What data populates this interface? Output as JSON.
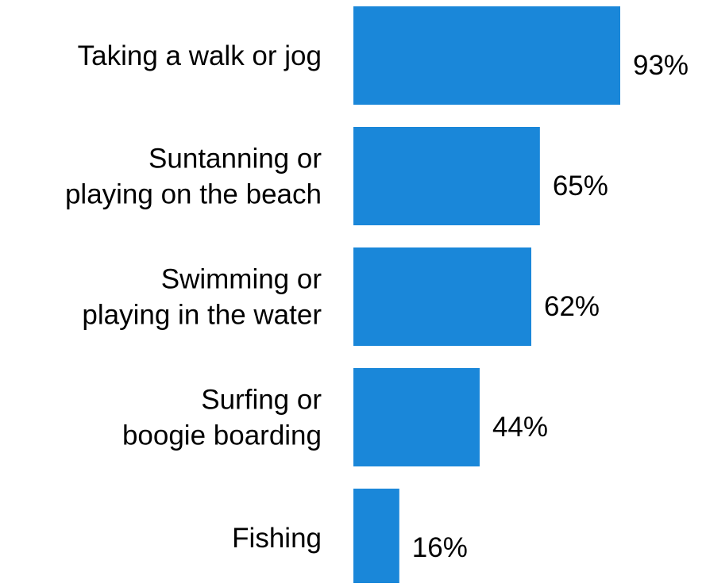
{
  "chart_data": {
    "type": "bar",
    "orientation": "horizontal",
    "categories": [
      [
        "Taking a walk or jog"
      ],
      [
        "Suntanning or",
        "playing on the beach"
      ],
      [
        "Swimming or",
        "playing in the water"
      ],
      [
        "Surfing or",
        "boogie boarding"
      ],
      [
        "Fishing"
      ]
    ],
    "values": [
      93,
      65,
      62,
      44,
      16
    ],
    "value_labels": [
      "93%",
      "65%",
      "62%",
      "44%",
      "16%"
    ],
    "xlim": [
      0,
      100
    ],
    "bar_color": "#1a87d9",
    "grid": false,
    "legend": "none",
    "title": "",
    "xlabel": "",
    "ylabel": ""
  }
}
